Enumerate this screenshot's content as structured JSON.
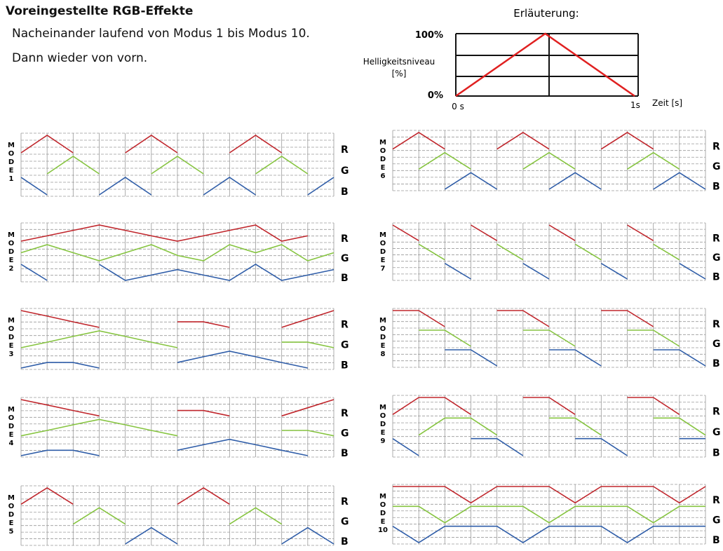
{
  "title": "Voreingestellte RGB-Effekte",
  "description": [
    "Nacheinander laufend von Modus 1 bis Modus 10.",
    "Dann wieder von vorn."
  ],
  "legend": {
    "heading": "Erläuterung:",
    "y_label": "Helligkeitsniveau",
    "y_unit": "[%]",
    "y_max_label": "100%",
    "y_min_label": "0%",
    "x_start_label": "0 s",
    "x_end_label": "1s",
    "x_axis_label": "Zeit [s]",
    "ramp": {
      "x": [
        0,
        0.5,
        1
      ],
      "y": [
        0,
        100,
        0
      ]
    }
  },
  "mode_word": "MODE",
  "channel_labels": [
    "R",
    "G",
    "B"
  ],
  "colors": {
    "R": "#c0262c",
    "G": "#86c440",
    "B": "#2f5da8",
    "grid": "#9a9a9a",
    "legend_line": "#e02020"
  },
  "chart_data": {
    "type": "line",
    "x_unit": "s",
    "y_unit": "%",
    "ylim": [
      0,
      100
    ],
    "modes": [
      {
        "number": "1",
        "series": [
          {
            "name": "R",
            "x": [
              0,
              1,
              2,
              3,
              4,
              5,
              6,
              7,
              8,
              9,
              10,
              11,
              12
            ],
            "y": [
              0,
              100,
              0,
              null,
              0,
              100,
              0,
              null,
              0,
              100,
              0,
              null,
              0
            ]
          },
          {
            "name": "G",
            "x": [
              0,
              1,
              2,
              3,
              4,
              5,
              6,
              7,
              8,
              9,
              10,
              11,
              12
            ],
            "y": [
              null,
              0,
              100,
              0,
              null,
              0,
              100,
              0,
              null,
              0,
              100,
              0,
              null
            ]
          },
          {
            "name": "B",
            "x": [
              0,
              1,
              2,
              3,
              4,
              5,
              6,
              7,
              8,
              9,
              10,
              11,
              12
            ],
            "y": [
              100,
              0,
              null,
              0,
              100,
              0,
              null,
              0,
              100,
              0,
              null,
              0,
              100
            ]
          }
        ]
      },
      {
        "number": "2",
        "series": [
          {
            "name": "R",
            "x": [
              0,
              1,
              2,
              3,
              4,
              5,
              6,
              7,
              8,
              9,
              10,
              11,
              12
            ],
            "y": [
              0,
              33,
              67,
              100,
              67,
              33,
              0,
              33,
              67,
              100,
              0,
              33,
              null
            ]
          },
          {
            "name": "G",
            "x": [
              0,
              1,
              2,
              3,
              4,
              5,
              6,
              7,
              8,
              9,
              10,
              11,
              12
            ],
            "y": [
              50,
              100,
              50,
              0,
              50,
              100,
              33,
              0,
              100,
              50,
              100,
              0,
              50
            ]
          },
          {
            "name": "B",
            "x": [
              0,
              1,
              2,
              3,
              4,
              5,
              6,
              7,
              8,
              9,
              10,
              11,
              12
            ],
            "y": [
              100,
              0,
              null,
              100,
              0,
              33,
              67,
              33,
              0,
              100,
              0,
              33,
              67
            ]
          }
        ]
      },
      {
        "number": "3",
        "series": [
          {
            "name": "R",
            "x": [
              0,
              1,
              2,
              3,
              4,
              5,
              6,
              7,
              8,
              9,
              10,
              11,
              12
            ],
            "y": [
              100,
              67,
              33,
              0,
              null,
              null,
              33,
              33,
              0,
              null,
              0,
              50,
              100
            ]
          },
          {
            "name": "G",
            "x": [
              0,
              1,
              2,
              3,
              4,
              5,
              6,
              7,
              8,
              9,
              10,
              11,
              12
            ],
            "y": [
              0,
              33,
              67,
              100,
              67,
              33,
              0,
              null,
              null,
              null,
              33,
              33,
              0
            ]
          },
          {
            "name": "B",
            "x": [
              0,
              1,
              2,
              3,
              4,
              5,
              6,
              7,
              8,
              9,
              10,
              11,
              12
            ],
            "y": [
              0,
              33,
              33,
              0,
              null,
              null,
              33,
              67,
              100,
              67,
              33,
              0,
              null
            ]
          }
        ]
      },
      {
        "number": "4",
        "series": [
          {
            "name": "R",
            "x": [
              0,
              1,
              2,
              3,
              4,
              5,
              6,
              7,
              8,
              9,
              10,
              11,
              12
            ],
            "y": [
              100,
              67,
              33,
              0,
              null,
              null,
              33,
              33,
              0,
              null,
              0,
              50,
              100
            ]
          },
          {
            "name": "G",
            "x": [
              0,
              1,
              2,
              3,
              4,
              5,
              6,
              7,
              8,
              9,
              10,
              11,
              12
            ],
            "y": [
              0,
              33,
              67,
              100,
              67,
              33,
              0,
              null,
              null,
              null,
              33,
              33,
              0
            ]
          },
          {
            "name": "B",
            "x": [
              0,
              1,
              2,
              3,
              4,
              5,
              6,
              7,
              8,
              9,
              10,
              11,
              12
            ],
            "y": [
              0,
              33,
              33,
              0,
              null,
              null,
              33,
              67,
              100,
              67,
              33,
              0,
              null
            ]
          }
        ]
      },
      {
        "number": "5",
        "series": [
          {
            "name": "R",
            "x": [
              0,
              1,
              2,
              3,
              4,
              5,
              6,
              7,
              8,
              9,
              10,
              11,
              12
            ],
            "y": [
              0,
              100,
              0,
              null,
              null,
              null,
              0,
              100,
              0,
              null,
              null,
              null,
              null
            ]
          },
          {
            "name": "G",
            "x": [
              0,
              1,
              2,
              3,
              4,
              5,
              6,
              7,
              8,
              9,
              10,
              11,
              12
            ],
            "y": [
              null,
              null,
              0,
              100,
              0,
              null,
              null,
              null,
              0,
              100,
              0,
              null,
              null
            ]
          },
          {
            "name": "B",
            "x": [
              0,
              1,
              2,
              3,
              4,
              5,
              6,
              7,
              8,
              9,
              10,
              11,
              12
            ],
            "y": [
              null,
              null,
              null,
              null,
              0,
              100,
              0,
              null,
              null,
              null,
              0,
              100,
              0
            ]
          }
        ]
      },
      {
        "number": "6",
        "series": [
          {
            "name": "R",
            "x": [
              0,
              1,
              2,
              3,
              4,
              5,
              6,
              7,
              8,
              9,
              10,
              11,
              12
            ],
            "y": [
              0,
              100,
              0,
              null,
              0,
              100,
              0,
              null,
              0,
              100,
              0,
              null,
              null
            ]
          },
          {
            "name": "G",
            "x": [
              0,
              1,
              2,
              3,
              4,
              5,
              6,
              7,
              8,
              9,
              10,
              11,
              12
            ],
            "y": [
              null,
              0,
              100,
              0,
              null,
              0,
              100,
              0,
              null,
              0,
              100,
              0,
              null
            ]
          },
          {
            "name": "B",
            "x": [
              0,
              1,
              2,
              3,
              4,
              5,
              6,
              7,
              8,
              9,
              10,
              11,
              12
            ],
            "y": [
              null,
              null,
              0,
              100,
              0,
              null,
              0,
              100,
              0,
              null,
              0,
              100,
              0
            ]
          }
        ]
      },
      {
        "number": "7",
        "series": [
          {
            "name": "R",
            "x": [
              0,
              1,
              2,
              3,
              4,
              5,
              6,
              7,
              8,
              9,
              10,
              11,
              12
            ],
            "y": [
              100,
              0,
              null,
              100,
              0,
              null,
              100,
              0,
              null,
              100,
              0,
              null,
              null
            ]
          },
          {
            "name": "G",
            "x": [
              0,
              1,
              2,
              3,
              4,
              5,
              6,
              7,
              8,
              9,
              10,
              11,
              12
            ],
            "y": [
              null,
              100,
              0,
              null,
              100,
              0,
              null,
              100,
              0,
              null,
              100,
              0,
              null
            ]
          },
          {
            "name": "B",
            "x": [
              0,
              1,
              2,
              3,
              4,
              5,
              6,
              7,
              8,
              9,
              10,
              11,
              12
            ],
            "y": [
              null,
              null,
              100,
              0,
              null,
              100,
              0,
              null,
              100,
              0,
              null,
              100,
              0
            ]
          }
        ]
      },
      {
        "number": "8",
        "series": [
          {
            "name": "R",
            "x": [
              0,
              1,
              2,
              3,
              4,
              5,
              6,
              7,
              8,
              9,
              10,
              11,
              12
            ],
            "y": [
              100,
              100,
              0,
              null,
              100,
              100,
              0,
              null,
              100,
              100,
              0,
              null,
              null
            ]
          },
          {
            "name": "G",
            "x": [
              0,
              1,
              2,
              3,
              4,
              5,
              6,
              7,
              8,
              9,
              10,
              11,
              12
            ],
            "y": [
              null,
              100,
              100,
              0,
              null,
              100,
              100,
              0,
              null,
              100,
              100,
              0,
              null
            ]
          },
          {
            "name": "B",
            "x": [
              0,
              1,
              2,
              3,
              4,
              5,
              6,
              7,
              8,
              9,
              10,
              11,
              12
            ],
            "y": [
              null,
              null,
              100,
              100,
              0,
              null,
              100,
              100,
              0,
              null,
              100,
              100,
              0
            ]
          }
        ]
      },
      {
        "number": "9",
        "series": [
          {
            "name": "R",
            "x": [
              0,
              1,
              2,
              3,
              4,
              5,
              6,
              7,
              8,
              9,
              10,
              11,
              12
            ],
            "y": [
              0,
              100,
              100,
              0,
              null,
              100,
              100,
              0,
              null,
              100,
              100,
              0,
              null
            ]
          },
          {
            "name": "G",
            "x": [
              0,
              1,
              2,
              3,
              4,
              5,
              6,
              7,
              8,
              9,
              10,
              11,
              12
            ],
            "y": [
              null,
              0,
              100,
              100,
              0,
              null,
              100,
              100,
              0,
              null,
              100,
              100,
              0
            ]
          },
          {
            "name": "B",
            "x": [
              0,
              1,
              2,
              3,
              4,
              5,
              6,
              7,
              8,
              9,
              10,
              11,
              12
            ],
            "y": [
              100,
              0,
              null,
              100,
              100,
              0,
              null,
              100,
              100,
              0,
              null,
              100,
              100
            ]
          }
        ]
      },
      {
        "number": "10",
        "series": [
          {
            "name": "R",
            "x": [
              0,
              1,
              2,
              3,
              4,
              5,
              6,
              7,
              8,
              9,
              10,
              11,
              12
            ],
            "y": [
              100,
              100,
              100,
              0,
              100,
              100,
              100,
              0,
              100,
              100,
              100,
              0,
              100
            ]
          },
          {
            "name": "G",
            "x": [
              0,
              1,
              2,
              3,
              4,
              5,
              6,
              7,
              8,
              9,
              10,
              11,
              12
            ],
            "y": [
              100,
              100,
              0,
              100,
              100,
              100,
              0,
              100,
              100,
              100,
              0,
              100,
              100
            ]
          },
          {
            "name": "B",
            "x": [
              0,
              1,
              2,
              3,
              4,
              5,
              6,
              7,
              8,
              9,
              10,
              11,
              12
            ],
            "y": [
              100,
              0,
              100,
              100,
              100,
              0,
              100,
              100,
              100,
              0,
              100,
              100,
              100
            ]
          }
        ]
      }
    ]
  }
}
